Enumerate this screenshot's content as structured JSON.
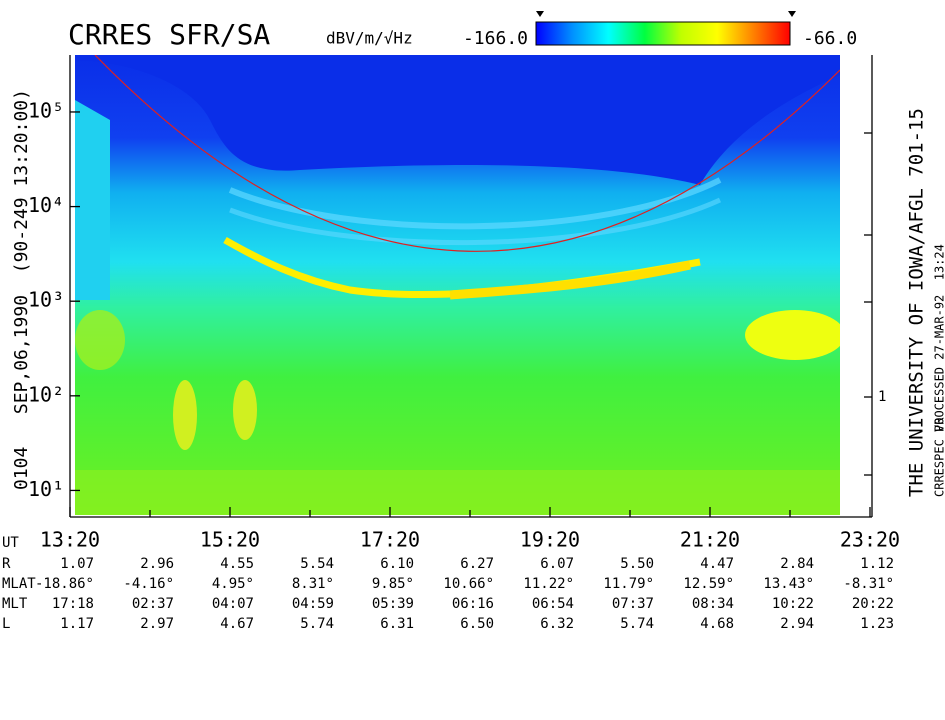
{
  "chart_data": {
    "type": "spectrogram",
    "title": "CRRES SFR/SA",
    "colorbar": {
      "label": "dBV/m/√Hz",
      "lim": [
        {
          "value": -166,
          "label": "-166.0"
        },
        {
          "value": -66,
          "label": "-66.0"
        }
      ],
      "colors": [
        "#0000ff",
        "#0090ff",
        "#00ffff",
        "#00ff40",
        "#c0ff00",
        "#ffff00",
        "#ff8000",
        "#ff0000"
      ]
    },
    "left_text": "0104   SEP,06,1990  (90-249 13:20:00)",
    "right_text": [
      "THE UNIVERSITY OF IOWA/AFGL 701-15",
      "PROCESSED 27-MAR-92  13:24",
      "CRRESPEC V0"
    ],
    "right_axis_label": "1",
    "log_y": true,
    "ylim": [
      5.5,
      400000
    ],
    "yticks": [
      {
        "value": 10,
        "label": "10¹"
      },
      {
        "value": 100,
        "label": "10²"
      },
      {
        "value": 1000,
        "label": "10³"
      },
      {
        "value": 10000,
        "label": "10⁴"
      },
      {
        "value": 100000,
        "label": "10⁵"
      }
    ],
    "xlim": [
      800,
      1400
    ],
    "xticks": [
      {
        "value": 800,
        "label": "13:20"
      },
      {
        "value": 920,
        "label": "15:20"
      },
      {
        "value": 1040,
        "label": "17:20"
      },
      {
        "value": 1160,
        "label": "19:20"
      },
      {
        "value": 1280,
        "label": "21:20"
      },
      {
        "value": 1400,
        "label": "23:20"
      }
    ],
    "xminorticks": [
      860,
      980,
      1100,
      1220,
      1340
    ],
    "x_label": "UT",
    "ephemeris": [
      {
        "label": "R",
        "values": [
          "1.07",
          "2.96",
          "4.55",
          "5.54",
          "6.10",
          "6.27",
          "6.07",
          "5.50",
          "4.47",
          "2.84",
          "1.12"
        ]
      },
      {
        "label": "MLAT",
        "values": [
          "-18.86°",
          "-4.16°",
          "4.95°",
          "8.31°",
          "9.85°",
          "10.66°",
          "11.22°",
          "11.79°",
          "12.59°",
          "13.43°",
          "-8.31°"
        ]
      },
      {
        "label": "MLT",
        "values": [
          "17:18",
          "02:37",
          "04:07",
          "04:59",
          "05:39",
          "06:16",
          "06:54",
          "07:37",
          "08:34",
          "10:22",
          "20:22"
        ]
      },
      {
        "label": "L",
        "values": [
          "1.17",
          "2.97",
          "4.67",
          "5.74",
          "6.31",
          "6.50",
          "6.32",
          "5.74",
          "4.68",
          "2.94",
          "1.23"
        ]
      }
    ]
  }
}
